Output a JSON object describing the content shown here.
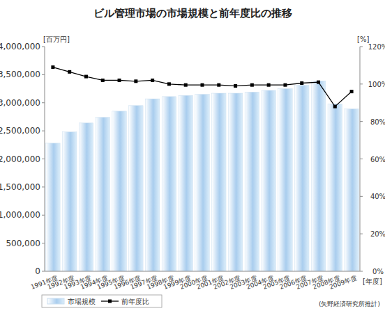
{
  "chart_data": {
    "type": "bar",
    "title": "ビル管理市場の市場規模と前年度比の推移",
    "y_label": "[百万円]",
    "y2_label": "[%]",
    "x_label": "[年度]",
    "source": "(矢野経済研究所推計)",
    "categories": [
      "1991年度",
      "1992年度",
      "1993年度",
      "1994年度",
      "1995年度",
      "1996年度",
      "1997年度",
      "1998年度",
      "1999年度",
      "2000年度",
      "2001年度",
      "2002年度",
      "2003年度",
      "2004年度",
      "2005年度",
      "2006年度",
      "2007年度",
      "2008年度",
      "2009年度"
    ],
    "series": [
      {
        "name": "市場規模",
        "type": "bar",
        "color": "#a9cdee",
        "values": [
          2280000,
          2480000,
          2640000,
          2740000,
          2850000,
          2950000,
          3070000,
          3110000,
          3130000,
          3150000,
          3170000,
          3170000,
          3190000,
          3220000,
          3250000,
          3310000,
          3390000,
          2980000,
          2890000
        ]
      },
      {
        "name": "前年度比",
        "type": "line",
        "axis": "y2",
        "color": "#000000",
        "marker": "square",
        "line_style": "solid",
        "values": [
          109,
          106.5,
          104,
          102,
          102,
          101.5,
          102,
          100,
          99.5,
          99.5,
          99.5,
          99,
          99.5,
          99.5,
          99.5,
          100.5,
          101,
          88,
          96
        ]
      }
    ],
    "ylim": [
      0,
      4000000
    ],
    "yticks": [
      0,
      {
        "value": 500000,
        "label": "500,000"
      },
      {
        "value": 1000000,
        "label": "1,000,000"
      },
      {
        "value": 1500000,
        "label": "1,500,000"
      },
      {
        "value": 2000000,
        "label": "2,000,000"
      },
      {
        "value": 2500000,
        "label": "2,500,000"
      },
      {
        "value": 3000000,
        "label": "3,000,000"
      },
      {
        "value": 3500000,
        "label": "3,500,000"
      },
      {
        "value": 4000000,
        "label": "4,000,000"
      }
    ],
    "y2lim": [
      0,
      120
    ],
    "y2ticks": [
      {
        "value": 0,
        "label": "0%"
      },
      {
        "value": 20,
        "label": "20%"
      },
      {
        "value": 40,
        "label": "40%"
      },
      {
        "value": 60,
        "label": "60%"
      },
      {
        "value": 80,
        "label": "80%"
      },
      {
        "value": 100,
        "label": "100%"
      },
      {
        "value": 120,
        "label": "120%"
      }
    ],
    "grid": false,
    "legend": "bottom-left"
  }
}
